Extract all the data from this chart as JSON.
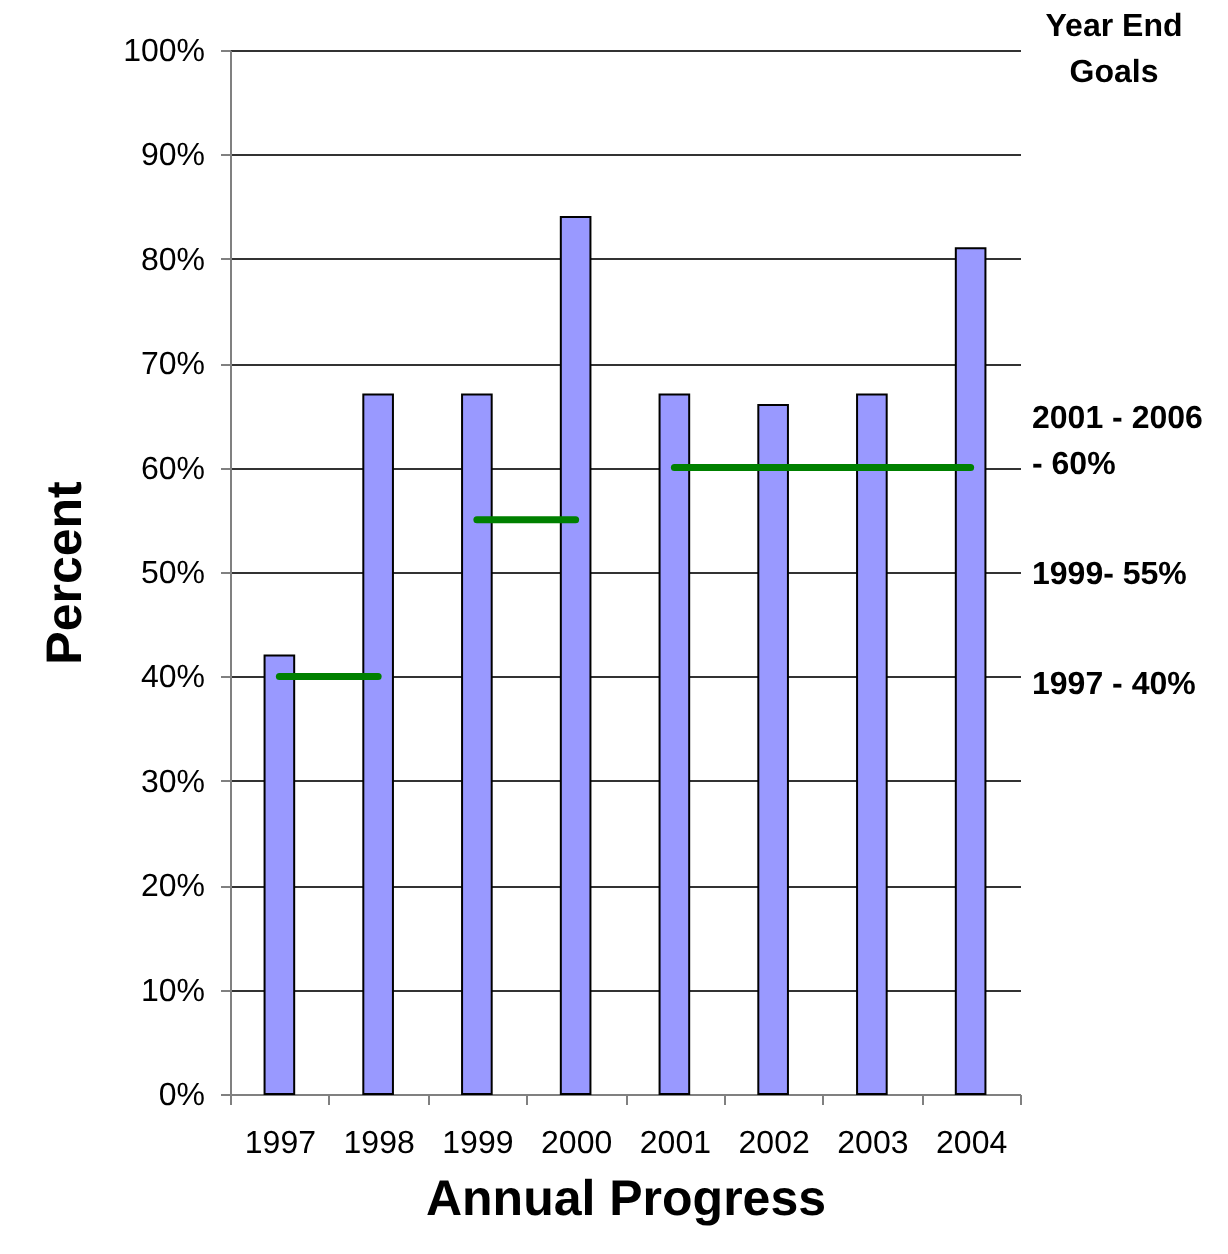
{
  "chart_data": {
    "type": "bar",
    "xlabel": "Annual Progress",
    "ylabel": "Percent",
    "categories": [
      "1997",
      "1998",
      "1999",
      "2000",
      "2001",
      "2002",
      "2003",
      "2004"
    ],
    "series": [
      {
        "color": "#9999ff",
        "values": [
          42,
          67,
          67,
          84,
          67,
          66,
          67,
          81
        ]
      },
      {
        "type": "line",
        "color": "#008000",
        "values": [
          40,
          40,
          null,
          null,
          null,
          null,
          null,
          null
        ]
      },
      {
        "type": "line",
        "color": "#008000",
        "values": [
          null,
          null,
          55,
          55,
          null,
          null,
          null,
          null
        ]
      },
      {
        "type": "line",
        "color": "#008000",
        "values": [
          null,
          null,
          null,
          null,
          60,
          60,
          60,
          60
        ]
      }
    ],
    "ylim": [
      0,
      100
    ],
    "yticks": [
      {
        "value": 0,
        "label": "0%"
      },
      {
        "value": 10,
        "label": "10%"
      },
      {
        "value": 20,
        "label": "20%"
      },
      {
        "value": 30,
        "label": "30%"
      },
      {
        "value": 40,
        "label": "40%"
      },
      {
        "value": 50,
        "label": "50%"
      },
      {
        "value": 60,
        "label": "60%"
      },
      {
        "value": 70,
        "label": "70%"
      },
      {
        "value": 80,
        "label": "80%"
      },
      {
        "value": 90,
        "label": "90%"
      },
      {
        "value": 100,
        "label": "100%"
      }
    ],
    "grid": "y",
    "annotations": [
      "Year End Goals",
      "2001 - 2006 - 60%",
      "1999- 55%",
      "1997 - 40%"
    ]
  }
}
